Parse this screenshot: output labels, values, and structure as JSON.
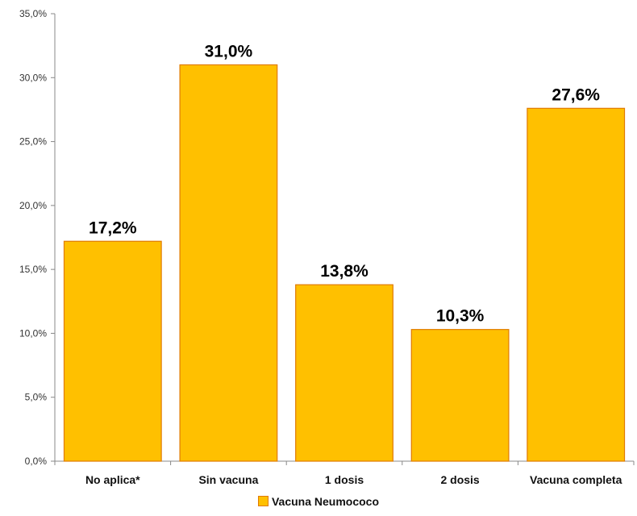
{
  "chart_data": {
    "type": "bar",
    "categories": [
      "No aplica*",
      "Sin vacuna",
      "1 dosis",
      "2 dosis",
      "Vacuna completa"
    ],
    "series": [
      {
        "name": "Vacuna  Neumococo",
        "values": [
          17.2,
          31.0,
          13.8,
          10.3,
          27.6
        ]
      }
    ],
    "data_labels": [
      "17,2%",
      "31,0%",
      "13,8%",
      "10,3%",
      "27,6%"
    ],
    "yticks": [
      0,
      5,
      10,
      15,
      20,
      25,
      30,
      35
    ],
    "ytick_labels": [
      "0,0%",
      "5,0%",
      "10,0%",
      "15,0%",
      "20,0%",
      "25,0%",
      "30,0%",
      "35,0%"
    ],
    "ylim": [
      0,
      35
    ],
    "grid": false,
    "legend_position": "bottom",
    "colors": {
      "bar_fill": "#FFC000",
      "bar_stroke": "#E07B00",
      "axis": "#888888"
    }
  }
}
